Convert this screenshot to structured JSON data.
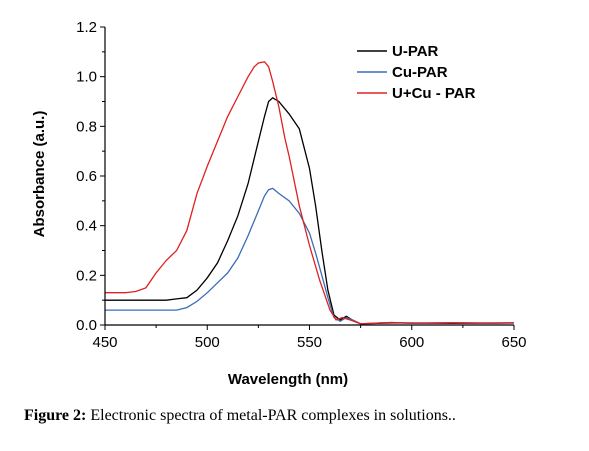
{
  "chart_data": {
    "type": "line",
    "xlabel": "Wavelength (nm)",
    "ylabel": "Absorbance (a.u.)",
    "xlim": [
      450,
      650
    ],
    "ylim": [
      0,
      1.2
    ],
    "x_ticks": [
      "450",
      "500",
      "550",
      "600",
      "650"
    ],
    "y_ticks": [
      "0.0",
      "0.2",
      "0.4",
      "0.6",
      "0.8",
      "1.0",
      "1.2"
    ],
    "legend_position": "top-right",
    "series": [
      {
        "name": "U-PAR",
        "color": "#000000",
        "points": [
          [
            450,
            0.1
          ],
          [
            460,
            0.1
          ],
          [
            470,
            0.1
          ],
          [
            480,
            0.1
          ],
          [
            485,
            0.105
          ],
          [
            490,
            0.11
          ],
          [
            495,
            0.14
          ],
          [
            500,
            0.19
          ],
          [
            505,
            0.25
          ],
          [
            510,
            0.34
          ],
          [
            515,
            0.44
          ],
          [
            520,
            0.57
          ],
          [
            525,
            0.74
          ],
          [
            528,
            0.84
          ],
          [
            530,
            0.9
          ],
          [
            532,
            0.915
          ],
          [
            535,
            0.9
          ],
          [
            540,
            0.85
          ],
          [
            545,
            0.79
          ],
          [
            550,
            0.63
          ],
          [
            553,
            0.48
          ],
          [
            556,
            0.3
          ],
          [
            559,
            0.14
          ],
          [
            562,
            0.04
          ],
          [
            565,
            0.02
          ],
          [
            568,
            0.035
          ],
          [
            571,
            0.02
          ],
          [
            575,
            0.005
          ],
          [
            590,
            0.008
          ],
          [
            600,
            0.008
          ],
          [
            620,
            0.007
          ],
          [
            640,
            0.008
          ],
          [
            650,
            0.008
          ]
        ]
      },
      {
        "name": "Cu-PAR",
        "color": "#3a6db5",
        "points": [
          [
            450,
            0.06
          ],
          [
            460,
            0.06
          ],
          [
            470,
            0.06
          ],
          [
            480,
            0.06
          ],
          [
            485,
            0.06
          ],
          [
            490,
            0.07
          ],
          [
            495,
            0.095
          ],
          [
            500,
            0.13
          ],
          [
            505,
            0.17
          ],
          [
            510,
            0.21
          ],
          [
            515,
            0.27
          ],
          [
            520,
            0.36
          ],
          [
            525,
            0.46
          ],
          [
            528,
            0.52
          ],
          [
            530,
            0.545
          ],
          [
            532,
            0.55
          ],
          [
            535,
            0.53
          ],
          [
            540,
            0.5
          ],
          [
            545,
            0.45
          ],
          [
            550,
            0.37
          ],
          [
            553,
            0.29
          ],
          [
            556,
            0.2
          ],
          [
            559,
            0.11
          ],
          [
            562,
            0.03
          ],
          [
            565,
            0.015
          ],
          [
            568,
            0.03
          ],
          [
            571,
            0.02
          ],
          [
            575,
            0.005
          ],
          [
            590,
            0.01
          ],
          [
            600,
            0.007
          ],
          [
            620,
            0.009
          ],
          [
            640,
            0.007
          ],
          [
            650,
            0.009
          ]
        ]
      },
      {
        "name": "U+Cu - PAR",
        "color": "#e02020",
        "points": [
          [
            450,
            0.13
          ],
          [
            460,
            0.13
          ],
          [
            465,
            0.135
          ],
          [
            470,
            0.15
          ],
          [
            475,
            0.21
          ],
          [
            480,
            0.26
          ],
          [
            485,
            0.3
          ],
          [
            490,
            0.38
          ],
          [
            495,
            0.53
          ],
          [
            500,
            0.64
          ],
          [
            505,
            0.74
          ],
          [
            510,
            0.84
          ],
          [
            515,
            0.92
          ],
          [
            520,
            1.0
          ],
          [
            523,
            1.04
          ],
          [
            525,
            1.055
          ],
          [
            528,
            1.06
          ],
          [
            530,
            1.04
          ],
          [
            532,
            0.98
          ],
          [
            535,
            0.88
          ],
          [
            538,
            0.75
          ],
          [
            540,
            0.68
          ],
          [
            545,
            0.48
          ],
          [
            550,
            0.32
          ],
          [
            555,
            0.18
          ],
          [
            560,
            0.06
          ],
          [
            563,
            0.02
          ],
          [
            566,
            0.03
          ],
          [
            570,
            0.02
          ],
          [
            575,
            0.005
          ],
          [
            590,
            0.01
          ],
          [
            600,
            0.008
          ],
          [
            620,
            0.009
          ],
          [
            640,
            0.008
          ],
          [
            650,
            0.009
          ]
        ]
      }
    ]
  },
  "caption": {
    "label": "Figure 2:",
    "text": " Electronic spectra of metal-PAR complexes in solutions.."
  }
}
